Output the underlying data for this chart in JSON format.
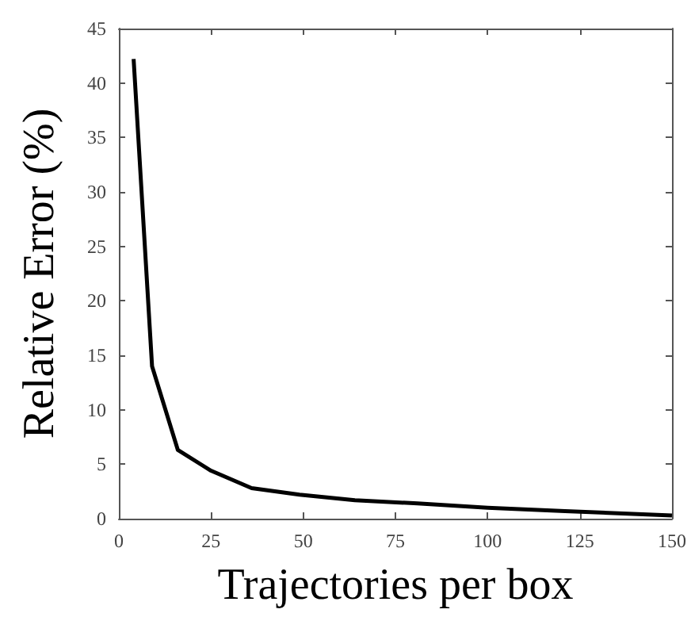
{
  "chart_data": {
    "type": "line",
    "xlabel": "Trajectories per box",
    "ylabel": "Relative Error (%)",
    "x": [
      4,
      9,
      16,
      25,
      36,
      49,
      64,
      81,
      100,
      121,
      150
    ],
    "series": [
      {
        "color": "#000000",
        "values": [
          42.2,
          14,
          6.3,
          4.4,
          2.8,
          2.2,
          1.7,
          1.4,
          1.0,
          0.7,
          0.3
        ]
      }
    ],
    "xlim": [
      0,
      150
    ],
    "xticks": [
      0,
      25,
      50,
      75,
      100,
      125,
      150
    ],
    "ylim": [
      0,
      45
    ],
    "yticks": [
      0,
      5,
      10,
      15,
      20,
      25,
      30,
      35,
      40,
      45
    ],
    "grid": false,
    "marker": "none",
    "line_style": "solid"
  }
}
